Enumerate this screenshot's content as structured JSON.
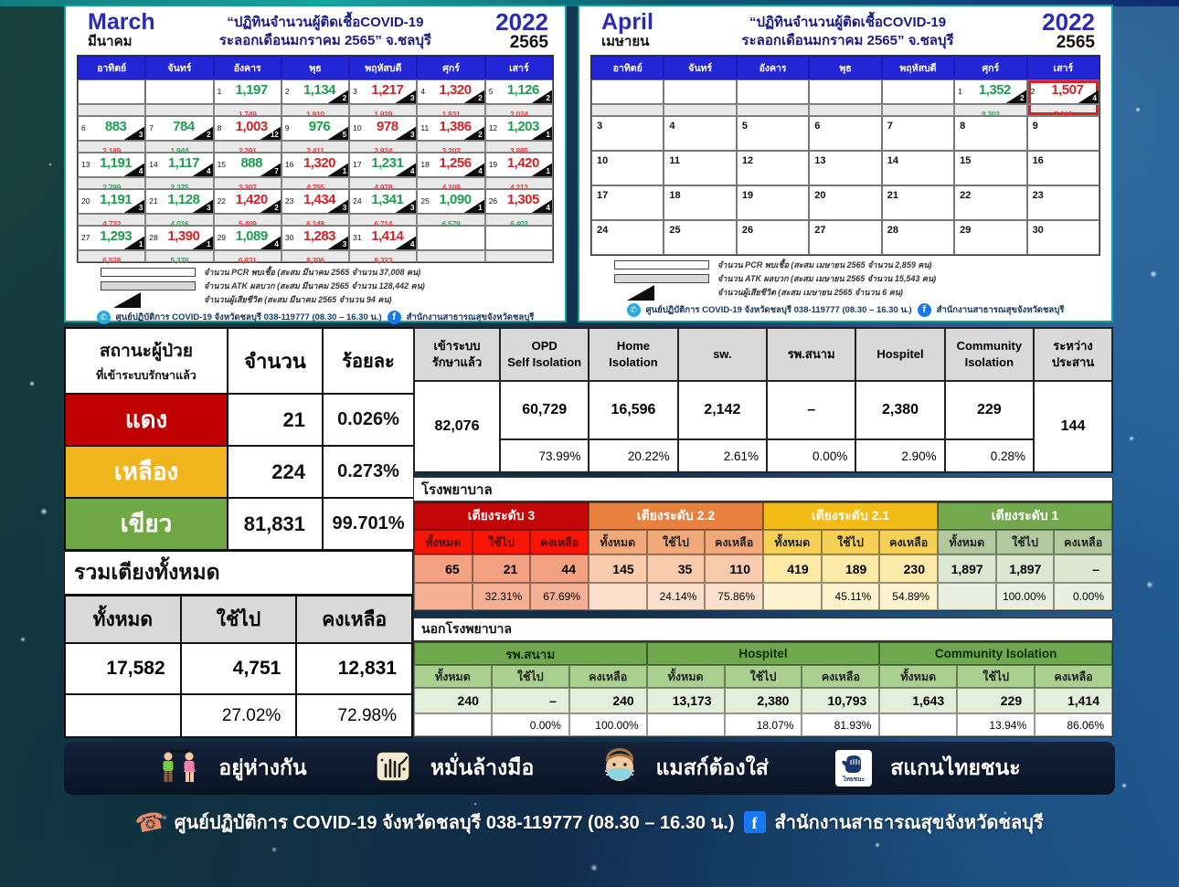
{
  "colors": {
    "case_green": "#1f9e50",
    "case_red": "#cf2525",
    "day_header_blue": "#2326d6",
    "highlight_red": "#e01f1f",
    "status_red": "#c00000",
    "status_yellow": "#f0b51c",
    "status_green": "#70a845"
  },
  "calendars": [
    {
      "month_en": "March",
      "month_th": "มีนาคม",
      "title_line1": "“ปฏิทินจำนวนผู้ติดเชื้อCOVID-19",
      "title_line2": "ระลอกเดือนมกราคม 2565” จ.ชลบุรี",
      "year_en": "2022",
      "year_th": "2565",
      "day_headers": [
        "อาทิตย์",
        "จันทร์",
        "อังคาร",
        "พุธ",
        "พฤหัสบดี",
        "ศุกร์",
        "เสาร์"
      ],
      "weeks": [
        {
          "type": "data",
          "cells": [
            null,
            null,
            {
              "d": 1,
              "v": "1,197",
              "c": "g"
            },
            {
              "d": 2,
              "v": "1,134",
              "c": "g",
              "t": "2"
            },
            {
              "d": 3,
              "v": "1,217",
              "c": "r",
              "t": "3"
            },
            {
              "d": 4,
              "v": "1,320",
              "c": "r",
              "t": "2"
            },
            {
              "d": 5,
              "v": "1,126",
              "c": "g",
              "t": "2"
            }
          ],
          "sub": [
            null,
            null,
            {
              "v": "1,749",
              "c": "r"
            },
            {
              "v": "1,910",
              "c": "r"
            },
            {
              "v": "1,929",
              "c": "r"
            },
            {
              "v": "1,831",
              "c": "r"
            },
            {
              "v": "2,024",
              "c": "r"
            }
          ]
        },
        {
          "type": "data",
          "cells": [
            {
              "d": 6,
              "v": "883",
              "c": "g",
              "t": "3"
            },
            {
              "d": 7,
              "v": "784",
              "c": "g",
              "t": "2"
            },
            {
              "d": 8,
              "v": "1,003",
              "c": "r",
              "t": "12"
            },
            {
              "d": 9,
              "v": "976",
              "c": "g",
              "t": "5"
            },
            {
              "d": 10,
              "v": "978",
              "c": "r",
              "t": "3"
            },
            {
              "d": 11,
              "v": "1,386",
              "c": "r",
              "t": "2"
            },
            {
              "d": 12,
              "v": "1,203",
              "c": "g",
              "t": "1"
            }
          ],
          "sub": [
            {
              "v": "2,189",
              "c": "r"
            },
            {
              "v": "1,944",
              "c": "g"
            },
            {
              "v": "2,291",
              "c": "r"
            },
            {
              "v": "2,411",
              "c": "r"
            },
            {
              "v": "2,924",
              "c": "r"
            },
            {
              "v": "3,202",
              "c": "r"
            },
            {
              "v": "3,885",
              "c": "r"
            }
          ]
        },
        {
          "type": "data",
          "cells": [
            {
              "d": 13,
              "v": "1,191",
              "c": "g",
              "t": "4"
            },
            {
              "d": 14,
              "v": "1,117",
              "c": "g",
              "t": "4"
            },
            {
              "d": 15,
              "v": "888",
              "c": "g",
              "t": "7"
            },
            {
              "d": 16,
              "v": "1,320",
              "c": "r",
              "t": "1"
            },
            {
              "d": 17,
              "v": "1,231",
              "c": "g",
              "t": "4"
            },
            {
              "d": 18,
              "v": "1,256",
              "c": "r",
              "t": "4"
            },
            {
              "d": 19,
              "v": "1,420",
              "c": "r",
              "t": "1"
            }
          ],
          "sub": [
            {
              "v": "2,799",
              "c": "g"
            },
            {
              "v": "2,375",
              "c": "g"
            },
            {
              "v": "3,307",
              "c": "r"
            },
            {
              "v": "4,755",
              "c": "r"
            },
            {
              "v": "4,978",
              "c": "r"
            },
            {
              "v": "4,109",
              "c": "r"
            },
            {
              "v": "4,212",
              "c": "r"
            }
          ]
        },
        {
          "type": "data",
          "cells": [
            {
              "d": 20,
              "v": "1,191",
              "c": "g",
              "t": "3"
            },
            {
              "d": 21,
              "v": "1,128",
              "c": "g",
              "t": "3"
            },
            {
              "d": 22,
              "v": "1,420",
              "c": "r",
              "t": "2"
            },
            {
              "d": 23,
              "v": "1,434",
              "c": "r",
              "t": "3"
            },
            {
              "d": 24,
              "v": "1,341",
              "c": "g",
              "t": "3"
            },
            {
              "d": 25,
              "v": "1,090",
              "c": "g",
              "t": "1"
            },
            {
              "d": 26,
              "v": "1,305",
              "c": "r",
              "t": "4"
            }
          ],
          "sub": [
            {
              "v": "4,732",
              "c": "r"
            },
            {
              "v": "4,016",
              "c": "g"
            },
            {
              "v": "5,409",
              "c": "r"
            },
            {
              "v": "6,148",
              "c": "r"
            },
            {
              "v": "6,714",
              "c": "r"
            },
            {
              "v": "6,579",
              "c": "g"
            },
            {
              "v": "6,403",
              "c": "g"
            }
          ]
        },
        {
          "type": "data",
          "cells": [
            {
              "d": 27,
              "v": "1,293",
              "c": "g",
              "t": "1"
            },
            {
              "d": 28,
              "v": "1,390",
              "c": "r",
              "t": "1"
            },
            {
              "d": 29,
              "v": "1,089",
              "c": "g",
              "t": "4"
            },
            {
              "d": 30,
              "v": "1,283",
              "c": "r",
              "t": "3"
            },
            {
              "d": 31,
              "v": "1,414",
              "c": "r",
              "t": "4"
            },
            null,
            null
          ],
          "sub": [
            {
              "v": "6,528",
              "c": "r"
            },
            {
              "v": "5,378",
              "c": "g"
            },
            {
              "v": "6,831",
              "c": "r"
            },
            {
              "v": "8,306",
              "c": "r"
            },
            {
              "v": "8,323",
              "c": "r"
            },
            null,
            null
          ]
        }
      ],
      "legend": [
        {
          "swatch": "pcr",
          "text": "จำนวน PCR พบเชื้อ (สะสม มีนาคม 2565 จำนวน 37,008 คน)"
        },
        {
          "swatch": "atk",
          "text": "จำนวน ATK ผลบวก (สะสม มีนาคม 2565 จำนวน 128,442 คน)"
        },
        {
          "swatch": "death",
          "text": "จำนวนผู้เสียชีวิต (สะสม มีนาคม 2565 จำนวน 94 คน)"
        }
      ],
      "footer_phone": "ศูนย์ปฏิบัติการ COVID-19 จังหวัดชลบุรี 038-119777 (08.30 – 16.30 น.)",
      "footer_fb": "สำนักงานสาธารณสุขจังหวัดชลบุรี"
    },
    {
      "month_en": "April",
      "month_th": "เมษายน",
      "title_line1": "“ปฏิทินจำนวนผู้ติดเชื้อCOVID-19",
      "title_line2": "ระลอกเดือนมกราคม 2565” จ.ชลบุรี",
      "year_en": "2022",
      "year_th": "2565",
      "day_headers": [
        "อาทิตย์",
        "จันทร์",
        "อังคาร",
        "พุธ",
        "พฤหัสบดี",
        "ศุกร์",
        "เสาร์"
      ],
      "weeks": [
        {
          "type": "data",
          "cells": [
            null,
            null,
            null,
            null,
            null,
            {
              "d": 1,
              "v": "1,352",
              "c": "g",
              "t": "2"
            },
            {
              "d": 2,
              "v": "1,507",
              "c": "r",
              "t": "4",
              "hl": true
            }
          ],
          "sub": [
            null,
            null,
            null,
            null,
            null,
            {
              "v": "8,302",
              "c": "g"
            },
            {
              "v": "7,241",
              "c": "r",
              "hl": true
            }
          ]
        },
        {
          "type": "plain",
          "days": [
            3,
            4,
            5,
            6,
            7,
            8,
            9
          ]
        },
        {
          "type": "plain",
          "days": [
            10,
            11,
            12,
            13,
            14,
            15,
            16
          ]
        },
        {
          "type": "plain",
          "days": [
            17,
            18,
            19,
            20,
            21,
            22,
            23
          ]
        },
        {
          "type": "plain",
          "days": [
            24,
            25,
            26,
            27,
            28,
            29,
            30
          ]
        }
      ],
      "legend": [
        {
          "swatch": "pcr",
          "text": "จำนวน PCR พบเชื้อ (สะสม เมษายน 2565 จำนวน 2,859 คน)"
        },
        {
          "swatch": "atk",
          "text": "จำนวน ATK ผลบวก (สะสม เมษายน 2565 จำนวน 15,543 คน)"
        },
        {
          "swatch": "death",
          "text": "จำนวนผู้เสียชีวิต (สะสม เมษายน 2565 จำนวน 6 คน)"
        }
      ],
      "footer_phone": "ศูนย์ปฏิบัติการ COVID-19 จังหวัดชลบุรี 038-119777 (08.30 – 16.30 น.)",
      "footer_fb": "สำนักงานสาธารณสุขจังหวัดชลบุรี"
    }
  ],
  "status_table": {
    "header_line1": "สถานะผู้ป่วย",
    "header_line2": "ที่เข้าระบบรักษาแล้ว",
    "col_count": "จำนวน",
    "col_percent": "ร้อยละ",
    "rows": [
      {
        "label": "แดง",
        "color": "#c00000",
        "count": "21",
        "percent": "0.026%"
      },
      {
        "label": "เหลือง",
        "color": "#f0b51c",
        "count": "224",
        "percent": "0.273%"
      },
      {
        "label": "เขียว",
        "color": "#70a845",
        "count": "81,831",
        "percent": "99.701%"
      }
    ]
  },
  "total_beds": {
    "title": "รวมเตียงทั้งหมด",
    "headers": [
      "ทั้งหมด",
      "ใช้ไป",
      "คงเหลือ"
    ],
    "values": [
      "17,582",
      "4,751",
      "12,831"
    ],
    "percents": [
      "",
      "27.02%",
      "72.98%"
    ]
  },
  "treatment_table": {
    "first": {
      "header1": "เข้าระบบ",
      "header2": "รักษาแล้ว",
      "value": "82,076"
    },
    "cols": [
      {
        "h1": "OPD",
        "h2": "Self Isolation",
        "v": "60,729",
        "p": "73.99%"
      },
      {
        "h1": "Home",
        "h2": "Isolation",
        "v": "16,596",
        "p": "20.22%"
      },
      {
        "h1": "sw.",
        "h2": "",
        "v": "2,142",
        "p": "2.61%"
      },
      {
        "h1": "รพ.สนาม",
        "h2": "",
        "v": "–",
        "p": "0.00%"
      },
      {
        "h1": "Hospitel",
        "h2": "",
        "v": "2,380",
        "p": "2.90%"
      },
      {
        "h1": "Community",
        "h2": "Isolation",
        "v": "229",
        "p": "0.28%"
      }
    ],
    "last": {
      "header1": "ระหว่าง",
      "header2": "ประสาน",
      "value": "144"
    }
  },
  "hospital_section": {
    "title": "โรงพยาบาล",
    "sub_headers": [
      "ทั้งหมด",
      "ใช้ไป",
      "คงเหลือ"
    ],
    "groups": [
      {
        "name": "เตียงระดับ 3",
        "scheme": "level3",
        "values": [
          "65",
          "21",
          "44"
        ],
        "percents": [
          "",
          "32.31%",
          "67.69%"
        ]
      },
      {
        "name": "เตียงระดับ 2.2",
        "scheme": "level22",
        "values": [
          "145",
          "35",
          "110"
        ],
        "percents": [
          "",
          "24.14%",
          "75.86%"
        ]
      },
      {
        "name": "เตียงระดับ 2.1",
        "scheme": "level21",
        "values": [
          "419",
          "189",
          "230"
        ],
        "percents": [
          "",
          "45.11%",
          "54.89%"
        ]
      },
      {
        "name": "เตียงระดับ 1",
        "scheme": "level1",
        "values": [
          "1,897",
          "1,897",
          "–"
        ],
        "percents": [
          "",
          "100.00%",
          "0.00%"
        ]
      }
    ]
  },
  "outside_section": {
    "title": "นอกโรงพยาบาล",
    "sub_headers": [
      "ทั้งหมด",
      "ใช้ไป",
      "คงเหลือ"
    ],
    "groups": [
      {
        "name": "รพ.สนาม",
        "values": [
          "240",
          "–",
          "240"
        ],
        "percents": [
          "",
          "0.00%",
          "100.00%"
        ]
      },
      {
        "name": "Hospitel",
        "values": [
          "13,173",
          "2,380",
          "10,793"
        ],
        "percents": [
          "",
          "18.07%",
          "81.93%"
        ]
      },
      {
        "name": "Community Isolation",
        "values": [
          "1,643",
          "229",
          "1,414"
        ],
        "percents": [
          "",
          "13.94%",
          "86.06%"
        ]
      }
    ]
  },
  "banner": {
    "items": [
      {
        "icon": "social-distancing",
        "label": "อยู่ห่างกัน"
      },
      {
        "icon": "hand-washing",
        "label": "หมั่นล้างมือ"
      },
      {
        "icon": "face-mask",
        "label": "แมสก์ต้องใส่"
      },
      {
        "icon": "thaichana",
        "label": "สแกนไทยชนะ",
        "logo_text": "ไทยชนะ"
      }
    ]
  },
  "page_footer": {
    "phone_text": "ศูนย์ปฏิบัติการ COVID-19 จังหวัดชลบุรี 038-119777 (08.30 – 16.30 น.)",
    "fb_text": "สำนักงานสาธารณสุขจังหวัดชลบุรี"
  }
}
